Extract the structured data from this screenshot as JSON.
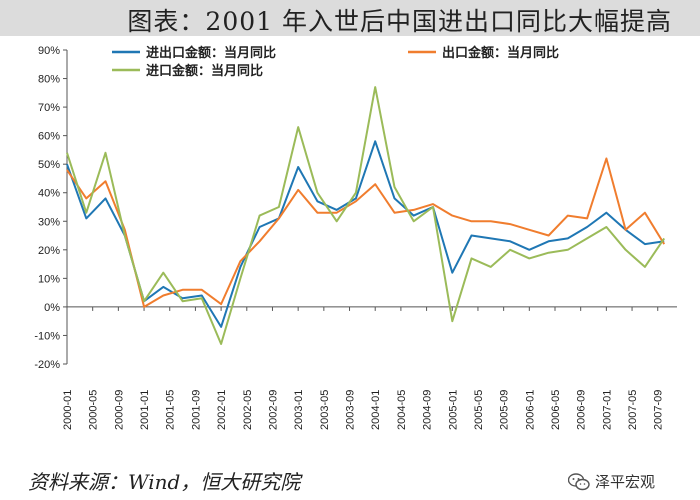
{
  "title": "图表：2001 年入世后中国进出口同比大幅提高",
  "source": "资料来源：Wind，恒大研究院",
  "brand": {
    "name": "泽平宏观",
    "logo_icon": "wechat-icon"
  },
  "chart_data": {
    "type": "line",
    "title": "图表：2001 年入世后中国进出口同比大幅提高",
    "ylim": [
      -20,
      90
    ],
    "yticks": [
      -20,
      -10,
      0,
      10,
      20,
      30,
      40,
      50,
      60,
      70,
      80,
      90
    ],
    "ytick_format": "percent",
    "x": [
      "2000-01",
      "2000-04",
      "2000-07",
      "2000-10",
      "2001-01",
      "2001-04",
      "2001-07",
      "2001-10",
      "2002-01",
      "2002-04",
      "2002-07",
      "2002-10",
      "2003-01",
      "2003-04",
      "2003-07",
      "2003-10",
      "2004-01",
      "2004-04",
      "2004-07",
      "2004-10",
      "2005-01",
      "2005-04",
      "2005-07",
      "2005-10",
      "2006-01",
      "2006-04",
      "2006-07",
      "2006-10",
      "2007-01",
      "2007-04",
      "2007-07",
      "2007-10"
    ],
    "xtick_labels": [
      "2000-01",
      "2000-05",
      "2000-09",
      "2001-01",
      "2001-05",
      "2001-09",
      "2002-01",
      "2002-05",
      "2002-09",
      "2003-01",
      "2003-05",
      "2003-09",
      "2004-01",
      "2004-05",
      "2004-09",
      "2005-01",
      "2005-05",
      "2005-09",
      "2006-01",
      "2006-05",
      "2006-09",
      "2007-01",
      "2007-05",
      "2007-09"
    ],
    "legend_placement": "top",
    "grid": false,
    "series": [
      {
        "name": "进出口金额：当月同比",
        "color": "#1f77b4",
        "values": [
          50,
          31,
          38,
          25,
          2,
          7,
          3,
          4,
          -7,
          14,
          28,
          31,
          49,
          37,
          34,
          38,
          58,
          38,
          32,
          35,
          12,
          25,
          24,
          23,
          20,
          23,
          24,
          28,
          33,
          27,
          22,
          23
        ]
      },
      {
        "name": "出口金额：当月同比",
        "color": "#f07d2e",
        "values": [
          48,
          38,
          44,
          27,
          0,
          4,
          6,
          6,
          1,
          16,
          23,
          31,
          41,
          33,
          33,
          37,
          43,
          33,
          34,
          36,
          32,
          30,
          30,
          29,
          27,
          25,
          32,
          31,
          52,
          27,
          33,
          22
        ]
      },
      {
        "name": "进口金额：当月同比",
        "color": "#9bbb59",
        "values": [
          54,
          33,
          54,
          25,
          2,
          12,
          2,
          3,
          -13,
          10,
          32,
          35,
          63,
          40,
          30,
          40,
          77,
          42,
          30,
          35,
          -5,
          17,
          14,
          20,
          17,
          19,
          20,
          24,
          28,
          20,
          14,
          24
        ]
      }
    ]
  }
}
